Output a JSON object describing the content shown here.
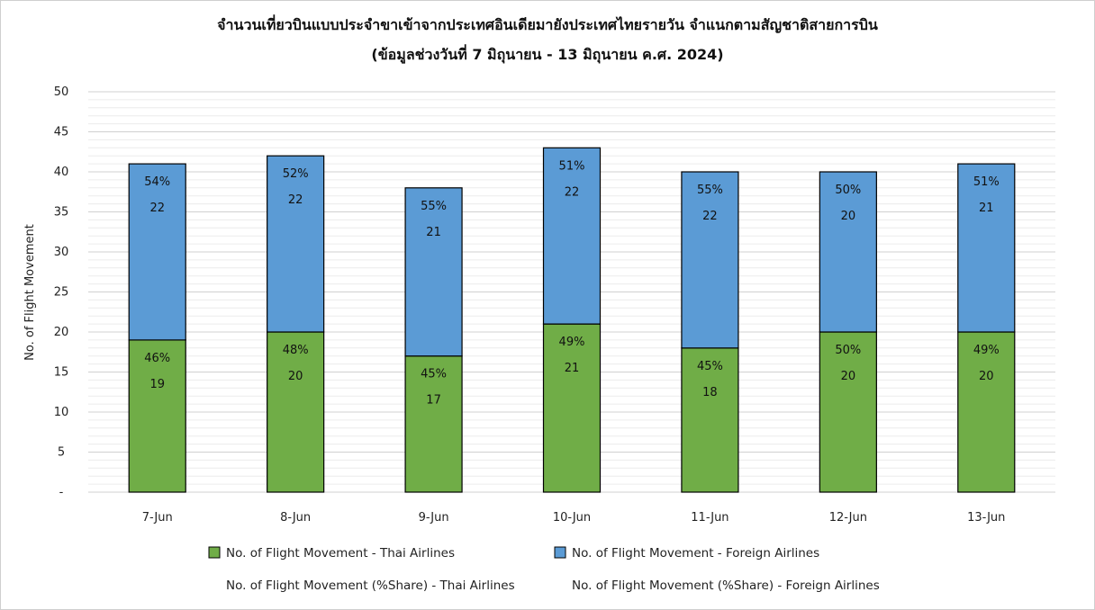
{
  "chart_data": {
    "type": "bar",
    "stacked": true,
    "title": "จำนวนเที่ยวบินแบบประจำขาเข้าจากประเทศอินเดียมายังประเทศไทยรายวัน  จำแนกตามสัญชาติสายการบิน",
    "subtitle": "(ข้อมูลช่วงวันที่ 7 มิถุนายน - 13 มิถุนายน ค.ศ. 2024)",
    "xlabel": "",
    "ylabel": "No. of Flight Movement",
    "ylim": [
      0,
      50
    ],
    "y_ticks": [
      "-",
      "5",
      "10",
      "15",
      "20",
      "25",
      "30",
      "35",
      "40",
      "45",
      "50"
    ],
    "grid": true,
    "legend_position": "bottom",
    "categories": [
      "7-Jun",
      "8-Jun",
      "9-Jun",
      "10-Jun",
      "11-Jun",
      "12-Jun",
      "13-Jun"
    ],
    "series": [
      {
        "name": "No. of Flight Movement - Thai Airlines",
        "color": "#70ad47",
        "values": [
          19,
          20,
          17,
          21,
          18,
          20,
          20
        ],
        "share_labels": [
          "46%",
          "48%",
          "45%",
          "49%",
          "45%",
          "50%",
          "49%"
        ]
      },
      {
        "name": "No. of Flight Movement - Foreign Airlines",
        "color": "#5b9bd5",
        "values": [
          22,
          22,
          21,
          22,
          22,
          20,
          21
        ],
        "share_labels": [
          "54%",
          "52%",
          "55%",
          "51%",
          "55%",
          "50%",
          "51%"
        ]
      }
    ],
    "share_legend": [
      "No. of Flight Movement (%Share) - Thai Airlines",
      "No. of Flight Movement (%Share) - Foreign Airlines"
    ]
  }
}
